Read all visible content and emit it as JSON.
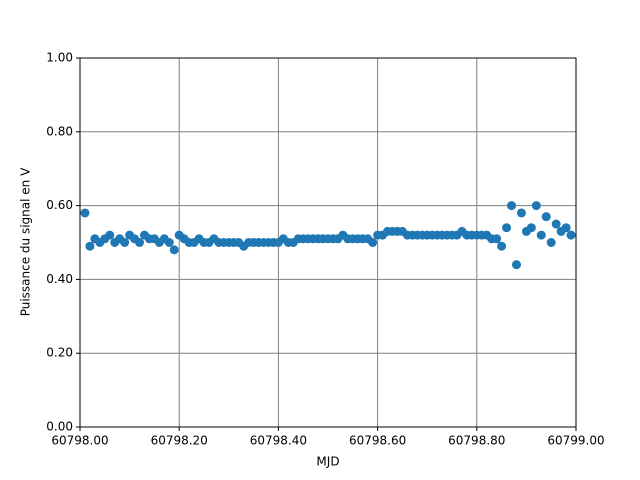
{
  "chart_data": {
    "type": "scatter",
    "x_label": "MJD",
    "y_label": "Puissance du signal en V",
    "x": [
      60798.01,
      60798.02,
      60798.03,
      60798.04,
      60798.05,
      60798.06,
      60798.07,
      60798.08,
      60798.09,
      60798.1,
      60798.11,
      60798.12,
      60798.13,
      60798.14,
      60798.15,
      60798.16,
      60798.17,
      60798.18,
      60798.19,
      60798.2,
      60798.21,
      60798.22,
      60798.23,
      60798.24,
      60798.25,
      60798.26,
      60798.27,
      60798.28,
      60798.29,
      60798.3,
      60798.31,
      60798.32,
      60798.33,
      60798.34,
      60798.35,
      60798.36,
      60798.37,
      60798.38,
      60798.39,
      60798.4,
      60798.41,
      60798.42,
      60798.43,
      60798.44,
      60798.45,
      60798.46,
      60798.47,
      60798.48,
      60798.49,
      60798.5,
      60798.51,
      60798.52,
      60798.53,
      60798.54,
      60798.55,
      60798.56,
      60798.57,
      60798.58,
      60798.59,
      60798.6,
      60798.61,
      60798.62,
      60798.63,
      60798.64,
      60798.65,
      60798.66,
      60798.67,
      60798.68,
      60798.69,
      60798.7,
      60798.71,
      60798.72,
      60798.73,
      60798.74,
      60798.75,
      60798.76,
      60798.77,
      60798.78,
      60798.79,
      60798.8,
      60798.81,
      60798.82,
      60798.83,
      60798.84,
      60798.85,
      60798.86,
      60798.87,
      60798.88,
      60798.89,
      60798.9,
      60798.91,
      60798.92,
      60798.93,
      60798.94,
      60798.95,
      60798.96,
      60798.97,
      60798.98,
      60798.99
    ],
    "series": [
      {
        "color": "#1f77b4",
        "values": [
          0.58,
          0.49,
          0.51,
          0.5,
          0.51,
          0.52,
          0.5,
          0.51,
          0.5,
          0.52,
          0.51,
          0.5,
          0.52,
          0.51,
          0.51,
          0.5,
          0.51,
          0.5,
          0.48,
          0.52,
          0.51,
          0.5,
          0.5,
          0.51,
          0.5,
          0.5,
          0.51,
          0.5,
          0.5,
          0.5,
          0.5,
          0.5,
          0.49,
          0.5,
          0.5,
          0.5,
          0.5,
          0.5,
          0.5,
          0.5,
          0.51,
          0.5,
          0.5,
          0.51,
          0.51,
          0.51,
          0.51,
          0.51,
          0.51,
          0.51,
          0.51,
          0.51,
          0.52,
          0.51,
          0.51,
          0.51,
          0.51,
          0.51,
          0.5,
          0.52,
          0.52,
          0.53,
          0.53,
          0.53,
          0.53,
          0.52,
          0.52,
          0.52,
          0.52,
          0.52,
          0.52,
          0.52,
          0.52,
          0.52,
          0.52,
          0.52,
          0.53,
          0.52,
          0.52,
          0.52,
          0.52,
          0.52,
          0.51,
          0.51,
          0.49,
          0.54,
          0.6,
          0.44,
          0.58,
          0.53,
          0.54,
          0.6,
          0.52,
          0.57,
          0.5,
          0.55,
          0.53,
          0.54,
          0.52
        ]
      }
    ],
    "xlim": [
      60798.0,
      60799.0
    ],
    "xticks": [
      {
        "value": 60798.0,
        "label": "60798.00"
      },
      {
        "value": 60798.2,
        "label": "60798.20"
      },
      {
        "value": 60798.4,
        "label": "60798.40"
      },
      {
        "value": 60798.6,
        "label": "60798.60"
      },
      {
        "value": 60798.8,
        "label": "60798.80"
      },
      {
        "value": 60799.0,
        "label": "60799.00"
      }
    ],
    "ylim": [
      0,
      1
    ],
    "yticks": [
      {
        "value": 0,
        "label": "0.00"
      },
      {
        "value": 0.2,
        "label": "0.20"
      },
      {
        "value": 0.4,
        "label": "0.40"
      },
      {
        "value": 0.6,
        "label": "0.60"
      },
      {
        "value": 0.8,
        "label": "0.80"
      },
      {
        "value": 1,
        "label": "1.00"
      }
    ],
    "grid": true
  }
}
